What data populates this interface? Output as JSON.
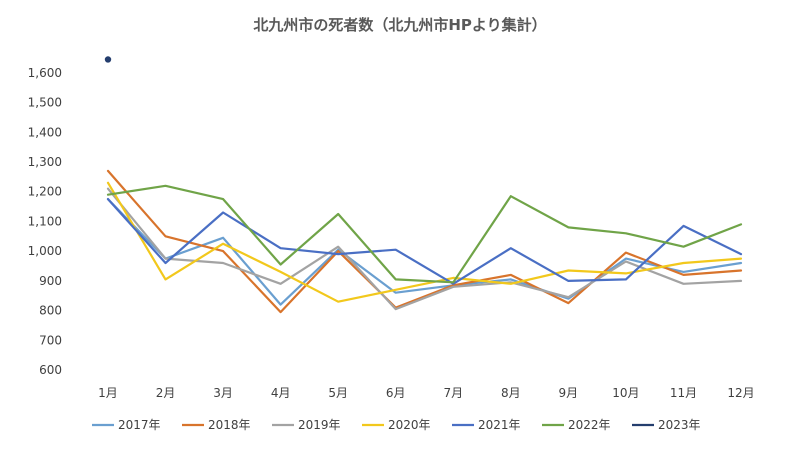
{
  "chart_data": {
    "type": "line",
    "title": "北九州市の死者数（北九州市HPより集計）",
    "xlabel": "",
    "ylabel": "",
    "categories": [
      "1月",
      "2月",
      "3月",
      "4月",
      "5月",
      "6月",
      "7月",
      "8月",
      "9月",
      "10月",
      "11月",
      "12月"
    ],
    "ylim": [
      600,
      1650
    ],
    "yticks": [
      600,
      700,
      800,
      900,
      1000,
      1100,
      1200,
      1300,
      1400,
      1500,
      1600
    ],
    "ytick_labels": [
      "600",
      "700",
      "800",
      "900",
      "1,000",
      "1,100",
      "1,200",
      "1,300",
      "1,400",
      "1,500",
      "1,600"
    ],
    "grid": false,
    "legend_position": "bottom",
    "series": [
      {
        "name": "2017年",
        "color": "#6a9fd0",
        "values": [
          1175,
          975,
          1045,
          820,
          1005,
          860,
          885,
          905,
          840,
          975,
          930,
          960
        ]
      },
      {
        "name": "2018年",
        "color": "#d8742c",
        "values": [
          1270,
          1050,
          1000,
          795,
          1000,
          810,
          885,
          920,
          825,
          995,
          920,
          935
        ]
      },
      {
        "name": "2019年",
        "color": "#a3a3a3",
        "values": [
          1210,
          975,
          960,
          890,
          1015,
          805,
          880,
          895,
          845,
          965,
          890,
          900
        ]
      },
      {
        "name": "2020年",
        "color": "#f2c81c",
        "values": [
          1230,
          905,
          1025,
          930,
          830,
          870,
          910,
          890,
          935,
          925,
          960,
          975
        ]
      },
      {
        "name": "2021年",
        "color": "#4a6fc4",
        "values": [
          1175,
          960,
          1130,
          1010,
          990,
          1005,
          890,
          1010,
          900,
          905,
          1085,
          990
        ]
      },
      {
        "name": "2022年",
        "color": "#70a448",
        "values": [
          1190,
          1220,
          1175,
          955,
          1125,
          905,
          895,
          1185,
          1080,
          1060,
          1015,
          1090
        ]
      },
      {
        "name": "2023年",
        "color": "#243e6e",
        "values": [
          1645,
          null,
          null,
          null,
          null,
          null,
          null,
          null,
          null,
          null,
          null,
          null
        ]
      }
    ]
  }
}
